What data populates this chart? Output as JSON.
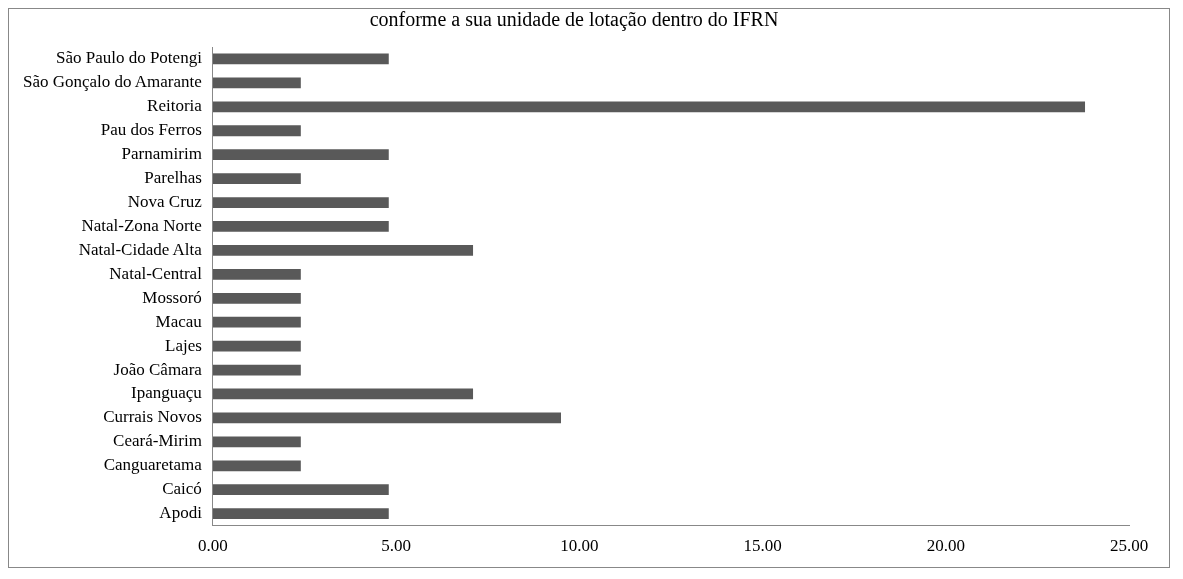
{
  "chart_data": {
    "type": "bar",
    "orientation": "horizontal",
    "title": "conforme a sua unidade de lotação dentro do IFRN",
    "categories": [
      "São Paulo do Potengi",
      "São Gonçalo do Amarante",
      "Reitoria",
      "Pau dos Ferros",
      "Parnamirim",
      "Parelhas",
      "Nova Cruz",
      "Natal-Zona Norte",
      "Natal-Cidade Alta",
      "Natal-Central",
      "Mossoró",
      "Macau",
      "Lajes",
      "João Câmara",
      "Ipanguaçu",
      "Currais Novos",
      "Ceará-Mirim",
      "Canguaretama",
      "Caicó",
      "Apodi"
    ],
    "values": [
      4.8,
      2.4,
      23.8,
      2.4,
      4.8,
      2.4,
      4.8,
      4.8,
      7.1,
      2.4,
      2.4,
      2.4,
      2.4,
      2.4,
      7.1,
      9.5,
      2.4,
      2.4,
      4.8,
      4.8
    ],
    "color": "#595959",
    "xlim": [
      0,
      25
    ],
    "xticks": [
      {
        "value": 0,
        "label": "0.00"
      },
      {
        "value": 5,
        "label": "5.00"
      },
      {
        "value": 10,
        "label": "10.00"
      },
      {
        "value": 15,
        "label": "15.00"
      },
      {
        "value": 20,
        "label": "20.00"
      },
      {
        "value": 25,
        "label": "25.00"
      }
    ],
    "grid": false,
    "legend": false
  }
}
